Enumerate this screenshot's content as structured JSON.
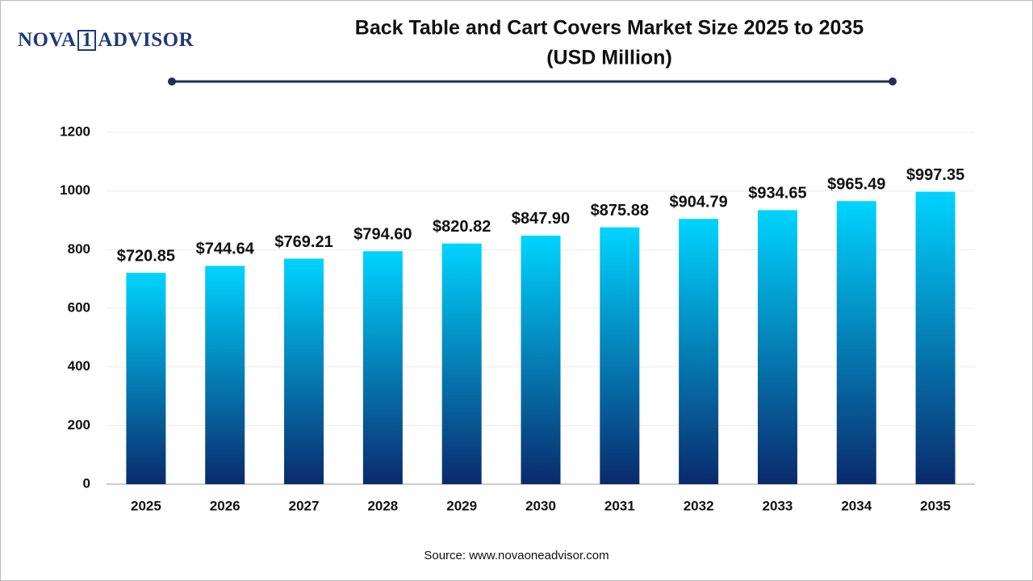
{
  "logo": {
    "left": "NOVA",
    "mark": "1",
    "right": "ADVISOR"
  },
  "chart_data": {
    "type": "bar",
    "title": "Back Table and Cart Covers Market Size 2025 to 2035",
    "subtitle": "(USD Million)",
    "categories": [
      "2025",
      "2026",
      "2027",
      "2028",
      "2029",
      "2030",
      "2031",
      "2032",
      "2033",
      "2034",
      "2035"
    ],
    "values": [
      720.85,
      744.64,
      769.21,
      794.6,
      820.82,
      847.9,
      875.88,
      904.79,
      934.65,
      965.49,
      997.35
    ],
    "value_labels": [
      "$720.85",
      "$744.64",
      "$769.21",
      "$794.60",
      "$820.82",
      "$847.90",
      "$875.88",
      "$904.79",
      "$934.65",
      "$965.49",
      "$997.35"
    ],
    "gradient": [
      "#00d4ff",
      "#0a2a6c"
    ],
    "ylim": [
      0,
      1200
    ],
    "yticks": [
      0,
      200,
      400,
      600,
      800,
      1000,
      1200
    ],
    "grid": true,
    "source": "Source: www.novaoneadvisor.com"
  }
}
